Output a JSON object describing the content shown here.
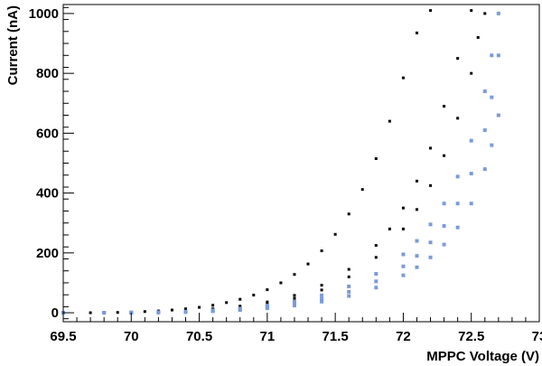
{
  "chart_data": {
    "type": "scatter",
    "title": "",
    "xlabel": "MPPC Voltage (V)",
    "ylabel": "Current (nA)",
    "xlim": [
      69.5,
      73.0
    ],
    "ylim": [
      -30,
      1030
    ],
    "x_ticks": [
      69.5,
      70,
      70.5,
      71,
      71.5,
      72,
      72.5,
      73
    ],
    "x_tick_labels": [
      "69.5",
      "70",
      "70.5",
      "71",
      "71.5",
      "72",
      "72.5",
      "73"
    ],
    "y_ticks": [
      0,
      200,
      400,
      600,
      800,
      1000
    ],
    "y_tick_labels": [
      "0",
      "200",
      "400",
      "600",
      "800",
      "1000"
    ],
    "grid": false,
    "legend": "none",
    "series": [
      {
        "color": "#000000",
        "marker": "square",
        "points": [
          [
            69.5,
            0
          ],
          [
            69.7,
            0
          ],
          [
            69.9,
            1
          ],
          [
            70.0,
            2
          ],
          [
            70.1,
            4
          ],
          [
            70.2,
            6
          ],
          [
            70.3,
            9
          ],
          [
            70.4,
            13
          ],
          [
            70.5,
            18
          ],
          [
            70.6,
            25
          ],
          [
            70.7,
            34
          ],
          [
            70.8,
            45
          ],
          [
            70.9,
            59
          ],
          [
            71.0,
            77
          ],
          [
            71.1,
            100
          ],
          [
            71.2,
            128
          ],
          [
            71.3,
            163
          ],
          [
            71.4,
            207
          ],
          [
            71.5,
            262
          ],
          [
            71.6,
            330
          ],
          [
            71.7,
            412
          ],
          [
            71.8,
            515
          ],
          [
            71.9,
            640
          ],
          [
            72.0,
            785
          ],
          [
            72.1,
            935
          ],
          [
            72.2,
            1010
          ]
        ]
      },
      {
        "color": "#000000",
        "marker": "square",
        "points": [
          [
            69.5,
            0
          ],
          [
            69.8,
            0
          ],
          [
            70.0,
            1
          ],
          [
            70.2,
            3
          ],
          [
            70.4,
            7
          ],
          [
            70.6,
            13
          ],
          [
            70.8,
            22
          ],
          [
            71.0,
            36
          ],
          [
            71.2,
            58
          ],
          [
            71.4,
            92
          ],
          [
            71.6,
            145
          ],
          [
            71.8,
            225
          ],
          [
            71.9,
            280
          ],
          [
            72.0,
            350
          ],
          [
            72.1,
            440
          ],
          [
            72.2,
            550
          ],
          [
            72.3,
            690
          ],
          [
            72.4,
            850
          ],
          [
            72.5,
            1010
          ]
        ]
      },
      {
        "color": "#000000",
        "marker": "square",
        "points": [
          [
            69.5,
            0
          ],
          [
            69.8,
            0
          ],
          [
            70.0,
            1
          ],
          [
            70.2,
            2
          ],
          [
            70.4,
            5
          ],
          [
            70.6,
            10
          ],
          [
            70.8,
            18
          ],
          [
            71.0,
            30
          ],
          [
            71.2,
            48
          ],
          [
            71.4,
            76
          ],
          [
            71.6,
            120
          ],
          [
            71.8,
            185
          ],
          [
            72.0,
            280
          ],
          [
            72.1,
            345
          ],
          [
            72.2,
            425
          ],
          [
            72.3,
            525
          ],
          [
            72.4,
            650
          ],
          [
            72.5,
            800
          ],
          [
            72.55,
            920
          ],
          [
            72.6,
            1000
          ]
        ]
      },
      {
        "color": "#7b9bd8",
        "marker": "square",
        "points": [
          [
            69.5,
            0
          ],
          [
            69.8,
            0
          ],
          [
            70.0,
            1
          ],
          [
            70.2,
            2
          ],
          [
            70.4,
            4
          ],
          [
            70.6,
            8
          ],
          [
            70.8,
            14
          ],
          [
            71.0,
            24
          ],
          [
            71.2,
            38
          ],
          [
            71.4,
            58
          ],
          [
            71.6,
            88
          ],
          [
            71.8,
            130
          ],
          [
            72.0,
            195
          ],
          [
            72.1,
            240
          ],
          [
            72.2,
            295
          ],
          [
            72.3,
            365
          ],
          [
            72.4,
            455
          ],
          [
            72.5,
            575
          ],
          [
            72.6,
            740
          ],
          [
            72.65,
            860
          ],
          [
            72.7,
            1000
          ]
        ]
      },
      {
        "color": "#7b9bd8",
        "marker": "square",
        "points": [
          [
            69.5,
            0
          ],
          [
            69.8,
            0
          ],
          [
            70.0,
            0
          ],
          [
            70.2,
            1
          ],
          [
            70.4,
            3
          ],
          [
            70.6,
            6
          ],
          [
            70.8,
            11
          ],
          [
            71.0,
            19
          ],
          [
            71.2,
            30
          ],
          [
            71.4,
            46
          ],
          [
            71.6,
            70
          ],
          [
            71.8,
            105
          ],
          [
            72.0,
            155
          ],
          [
            72.1,
            190
          ],
          [
            72.2,
            235
          ],
          [
            72.3,
            290
          ],
          [
            72.4,
            365
          ],
          [
            72.5,
            465
          ],
          [
            72.6,
            610
          ],
          [
            72.65,
            720
          ],
          [
            72.7,
            860
          ]
        ]
      },
      {
        "color": "#7b9bd8",
        "marker": "square",
        "points": [
          [
            69.5,
            0
          ],
          [
            69.8,
            0
          ],
          [
            70.0,
            0
          ],
          [
            70.2,
            1
          ],
          [
            70.4,
            2
          ],
          [
            70.6,
            5
          ],
          [
            70.8,
            9
          ],
          [
            71.0,
            15
          ],
          [
            71.2,
            24
          ],
          [
            71.4,
            37
          ],
          [
            71.6,
            56
          ],
          [
            71.8,
            84
          ],
          [
            72.0,
            125
          ],
          [
            72.1,
            152
          ],
          [
            72.2,
            185
          ],
          [
            72.3,
            228
          ],
          [
            72.4,
            285
          ],
          [
            72.5,
            365
          ],
          [
            72.6,
            480
          ],
          [
            72.65,
            560
          ],
          [
            72.7,
            660
          ]
        ]
      }
    ]
  }
}
